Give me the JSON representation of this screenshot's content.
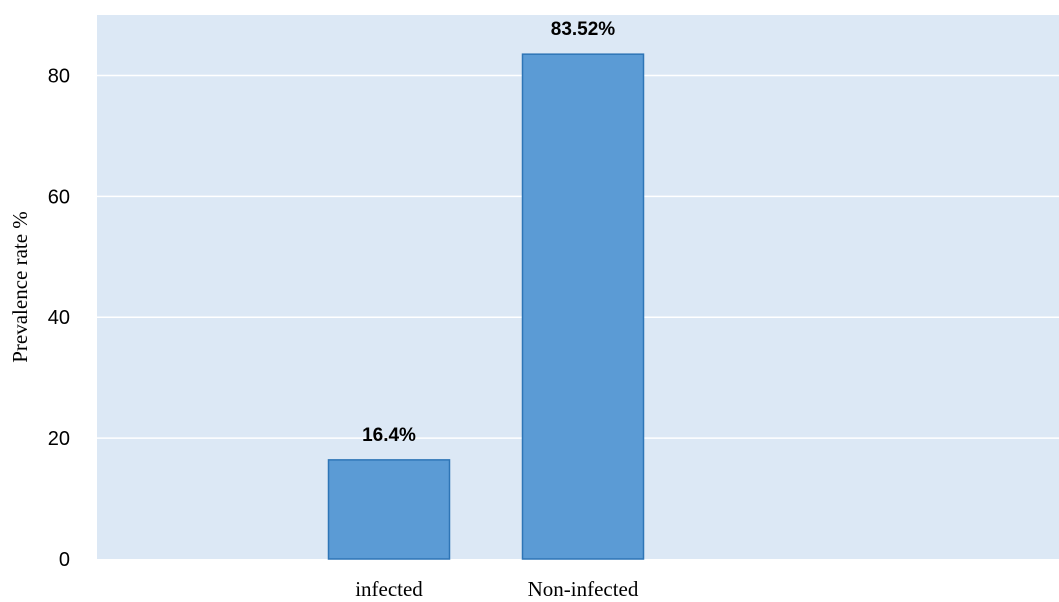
{
  "chart_data": {
    "type": "bar",
    "categories": [
      "infected",
      "Non-infected"
    ],
    "values": [
      16.4,
      83.52
    ],
    "data_labels": [
      "16.4%",
      "83.52%"
    ],
    "title": "",
    "xlabel": "",
    "ylabel": "Prevalence rate %",
    "ylim": [
      0,
      90
    ],
    "yticks": [
      0,
      20,
      40,
      60,
      80
    ],
    "grid": true,
    "legend": "none",
    "colors": {
      "plot_background": "#dce8f5",
      "bar_fill": "#5b9bd5",
      "bar_stroke": "#2e75b6",
      "gridline": "#ffffff"
    }
  }
}
